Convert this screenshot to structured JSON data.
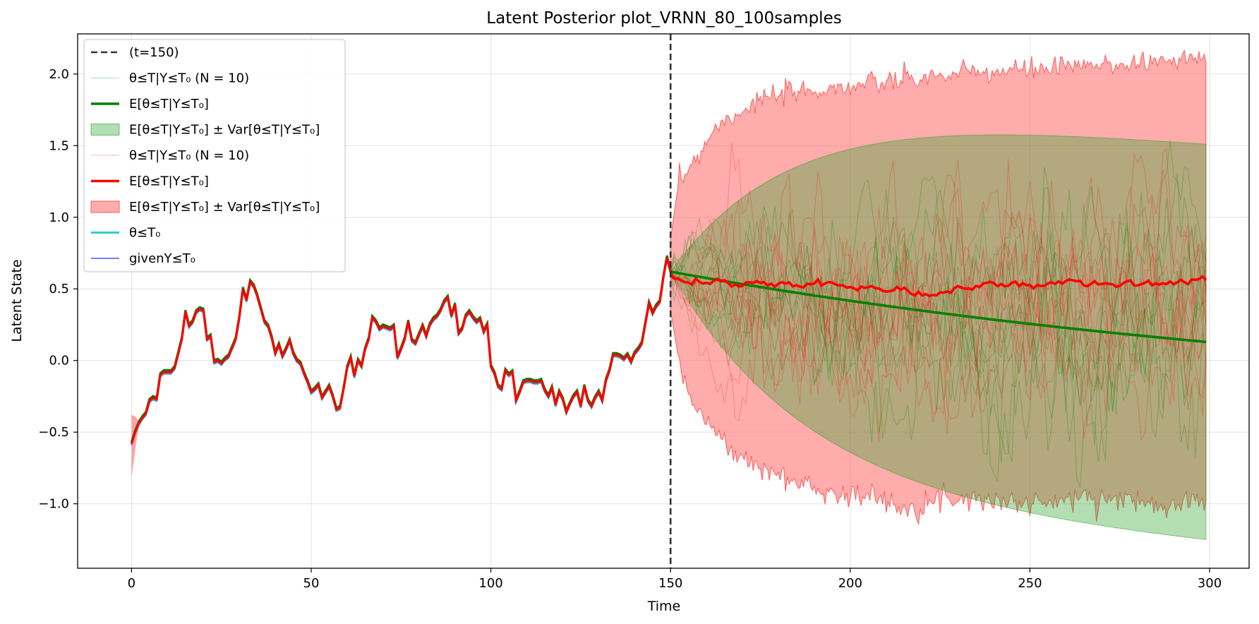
{
  "chart_data": {
    "type": "line",
    "title": "Latent Posterior plot_VRNN_80_100samples",
    "xlabel": "Time",
    "ylabel": "Latent State",
    "xlim": [
      -15,
      311
    ],
    "ylim": [
      -1.45,
      2.28
    ],
    "xticks": [
      0,
      50,
      100,
      150,
      200,
      250,
      300
    ],
    "yticks": [
      -1.0,
      -0.5,
      0.0,
      0.5,
      1.0,
      1.5,
      2.0
    ],
    "xtick_labels": [
      "0",
      "50",
      "100",
      "150",
      "200",
      "250",
      "300"
    ],
    "ytick_labels": [
      "−1.0",
      "−0.5",
      "0.0",
      "0.5",
      "1.0",
      "1.5",
      "2.0"
    ],
    "grid": true,
    "legend_position": "top-left",
    "cutoff_t": 150,
    "colors": {
      "cutoff": "#333333",
      "green": "#008000",
      "green_band": "#2ca02c",
      "red": "#ff0000",
      "red_band": "#ff5a5a",
      "cyan": "#00bfbf",
      "blue": "#5a5aff"
    },
    "observed_keypoints": [
      [
        0,
        -0.58
      ],
      [
        1,
        -0.5
      ],
      [
        2,
        -0.44
      ],
      [
        3,
        -0.4
      ],
      [
        4,
        -0.37
      ],
      [
        5,
        -0.28
      ],
      [
        6,
        -0.26
      ],
      [
        7,
        -0.27
      ],
      [
        8,
        -0.1
      ],
      [
        9,
        -0.08
      ],
      [
        10,
        -0.08
      ],
      [
        11,
        -0.08
      ],
      [
        12,
        -0.05
      ],
      [
        13,
        0.05
      ],
      [
        14,
        0.15
      ],
      [
        15,
        0.34
      ],
      [
        16,
        0.24
      ],
      [
        17,
        0.27
      ],
      [
        18,
        0.34
      ],
      [
        19,
        0.36
      ],
      [
        20,
        0.35
      ],
      [
        21,
        0.15
      ],
      [
        22,
        0.17
      ],
      [
        23,
        -0.01
      ],
      [
        24,
        0.0
      ],
      [
        25,
        -0.02
      ],
      [
        26,
        0.01
      ],
      [
        27,
        0.03
      ],
      [
        28,
        0.09
      ],
      [
        29,
        0.15
      ],
      [
        30,
        0.3
      ],
      [
        31,
        0.5
      ],
      [
        32,
        0.42
      ],
      [
        33,
        0.55
      ],
      [
        34,
        0.52
      ],
      [
        35,
        0.45
      ],
      [
        36,
        0.36
      ],
      [
        37,
        0.27
      ],
      [
        38,
        0.24
      ],
      [
        39,
        0.16
      ],
      [
        40,
        0.05
      ],
      [
        41,
        0.11
      ],
      [
        42,
        0.03
      ],
      [
        43,
        0.08
      ],
      [
        44,
        0.14
      ],
      [
        45,
        0.05
      ],
      [
        46,
        0.0
      ],
      [
        47,
        -0.02
      ],
      [
        48,
        -0.09
      ],
      [
        49,
        -0.15
      ],
      [
        50,
        -0.22
      ],
      [
        51,
        -0.2
      ],
      [
        52,
        -0.17
      ],
      [
        53,
        -0.26
      ],
      [
        54,
        -0.22
      ],
      [
        55,
        -0.18
      ],
      [
        56,
        -0.25
      ],
      [
        57,
        -0.34
      ],
      [
        58,
        -0.33
      ],
      [
        59,
        -0.2
      ],
      [
        60,
        -0.05
      ],
      [
        61,
        0.02
      ],
      [
        62,
        -0.11
      ],
      [
        63,
        0.0
      ],
      [
        64,
        -0.04
      ],
      [
        65,
        0.08
      ],
      [
        66,
        0.15
      ],
      [
        67,
        0.3
      ],
      [
        68,
        0.27
      ],
      [
        69,
        0.22
      ],
      [
        70,
        0.24
      ],
      [
        71,
        0.23
      ],
      [
        72,
        0.22
      ],
      [
        73,
        0.24
      ],
      [
        74,
        0.02
      ],
      [
        75,
        0.08
      ],
      [
        76,
        0.15
      ],
      [
        77,
        0.27
      ],
      [
        78,
        0.14
      ],
      [
        79,
        0.12
      ],
      [
        80,
        0.18
      ],
      [
        81,
        0.24
      ],
      [
        82,
        0.17
      ],
      [
        83,
        0.25
      ],
      [
        84,
        0.29
      ],
      [
        85,
        0.31
      ],
      [
        86,
        0.35
      ],
      [
        87,
        0.41
      ],
      [
        88,
        0.44
      ],
      [
        89,
        0.31
      ],
      [
        90,
        0.39
      ],
      [
        91,
        0.19
      ],
      [
        92,
        0.22
      ],
      [
        93,
        0.31
      ],
      [
        94,
        0.34
      ],
      [
        95,
        0.3
      ],
      [
        96,
        0.27
      ],
      [
        97,
        0.29
      ],
      [
        98,
        0.2
      ],
      [
        99,
        0.25
      ],
      [
        100,
        -0.04
      ],
      [
        101,
        -0.09
      ],
      [
        102,
        -0.18
      ],
      [
        103,
        -0.2
      ],
      [
        104,
        -0.07
      ],
      [
        105,
        -0.1
      ],
      [
        106,
        -0.08
      ],
      [
        107,
        -0.28
      ],
      [
        108,
        -0.22
      ],
      [
        109,
        -0.15
      ],
      [
        110,
        -0.14
      ],
      [
        111,
        -0.14
      ],
      [
        112,
        -0.15
      ],
      [
        113,
        -0.15
      ],
      [
        114,
        -0.14
      ],
      [
        115,
        -0.21
      ],
      [
        116,
        -0.25
      ],
      [
        117,
        -0.19
      ],
      [
        118,
        -0.31
      ],
      [
        119,
        -0.22
      ],
      [
        120,
        -0.27
      ],
      [
        121,
        -0.36
      ],
      [
        122,
        -0.3
      ],
      [
        123,
        -0.25
      ],
      [
        124,
        -0.22
      ],
      [
        125,
        -0.32
      ],
      [
        126,
        -0.18
      ],
      [
        127,
        -0.28
      ],
      [
        128,
        -0.32
      ],
      [
        129,
        -0.26
      ],
      [
        130,
        -0.22
      ],
      [
        131,
        -0.28
      ],
      [
        132,
        -0.14
      ],
      [
        133,
        -0.07
      ],
      [
        134,
        0.04
      ],
      [
        135,
        0.04
      ],
      [
        136,
        0.03
      ],
      [
        137,
        0.01
      ],
      [
        138,
        0.04
      ],
      [
        139,
        -0.01
      ],
      [
        140,
        0.05
      ],
      [
        141,
        0.08
      ],
      [
        142,
        0.12
      ],
      [
        143,
        0.26
      ],
      [
        144,
        0.4
      ],
      [
        145,
        0.33
      ],
      [
        146,
        0.38
      ],
      [
        147,
        0.41
      ],
      [
        148,
        0.58
      ],
      [
        149,
        0.72
      ],
      [
        150,
        0.62
      ]
    ],
    "green_mean": {
      "t0": 150,
      "y0": 0.62,
      "t1": 299,
      "y1": 0.13,
      "half_life_steps": 150
    },
    "green_band": {
      "sigma0": 0.0,
      "sigma_end": 1.38
    },
    "red_mean_keypoints": [
      [
        150,
        0.6
      ],
      [
        152,
        0.56
      ],
      [
        155,
        0.54
      ],
      [
        158,
        0.55
      ],
      [
        160,
        0.54
      ],
      [
        163,
        0.56
      ],
      [
        166,
        0.53
      ],
      [
        170,
        0.53
      ],
      [
        174,
        0.55
      ],
      [
        178,
        0.52
      ],
      [
        182,
        0.54
      ],
      [
        186,
        0.52
      ],
      [
        190,
        0.55
      ],
      [
        194,
        0.53
      ],
      [
        198,
        0.53
      ],
      [
        202,
        0.51
      ],
      [
        206,
        0.52
      ],
      [
        210,
        0.48
      ],
      [
        214,
        0.49
      ],
      [
        218,
        0.46
      ],
      [
        222,
        0.46
      ],
      [
        226,
        0.48
      ],
      [
        230,
        0.51
      ],
      [
        234,
        0.5
      ],
      [
        238,
        0.53
      ],
      [
        242,
        0.52
      ],
      [
        246,
        0.54
      ],
      [
        250,
        0.52
      ],
      [
        254,
        0.53
      ],
      [
        258,
        0.54
      ],
      [
        262,
        0.56
      ],
      [
        266,
        0.54
      ],
      [
        270,
        0.54
      ],
      [
        274,
        0.52
      ],
      [
        278,
        0.55
      ],
      [
        282,
        0.53
      ],
      [
        286,
        0.54
      ],
      [
        290,
        0.54
      ],
      [
        294,
        0.56
      ],
      [
        299,
        0.57
      ]
    ],
    "red_band_upper": [
      [
        150,
        0.85
      ],
      [
        152,
        1.2
      ],
      [
        155,
        1.35
      ],
      [
        158,
        1.45
      ],
      [
        162,
        1.62
      ],
      [
        168,
        1.72
      ],
      [
        175,
        1.82
      ],
      [
        185,
        1.87
      ],
      [
        195,
        1.9
      ],
      [
        210,
        1.94
      ],
      [
        230,
        2.0
      ],
      [
        250,
        2.03
      ],
      [
        270,
        2.06
      ],
      [
        290,
        2.1
      ],
      [
        299,
        2.11
      ]
    ],
    "red_band_lower": [
      [
        150,
        0.35
      ],
      [
        152,
        0.05
      ],
      [
        155,
        -0.2
      ],
      [
        158,
        -0.35
      ],
      [
        162,
        -0.5
      ],
      [
        168,
        -0.65
      ],
      [
        175,
        -0.75
      ],
      [
        185,
        -0.85
      ],
      [
        195,
        -0.92
      ],
      [
        205,
        -0.95
      ],
      [
        215,
        -1.02
      ],
      [
        230,
        -0.95
      ],
      [
        250,
        -1.0
      ],
      [
        270,
        -0.95
      ],
      [
        285,
        -1.0
      ],
      [
        299,
        -0.97
      ]
    ],
    "legend": [
      {
        "label": "(t=150)",
        "kind": "dashed"
      },
      {
        "label": "θ≤T|Y≤T₀ (N = 10)",
        "kind": "thin-green"
      },
      {
        "label": "E[θ≤T|Y≤T₀]",
        "kind": "green"
      },
      {
        "label": "E[θ≤T|Y≤T₀] ± Var[θ≤T|Y≤T₀]",
        "kind": "green-band"
      },
      {
        "label": "θ≤T|Y≤T₀ (N = 10)",
        "kind": "thin-red"
      },
      {
        "label": "E[θ≤T|Y≤T₀]",
        "kind": "red"
      },
      {
        "label": "E[θ≤T|Y≤T₀] ± Var[θ≤T|Y≤T₀]",
        "kind": "red-band"
      },
      {
        "label": "θ≤T₀",
        "kind": "cyan"
      },
      {
        "label": "givenY≤T₀",
        "kind": "blue"
      }
    ],
    "samples_per_group": 10
  }
}
